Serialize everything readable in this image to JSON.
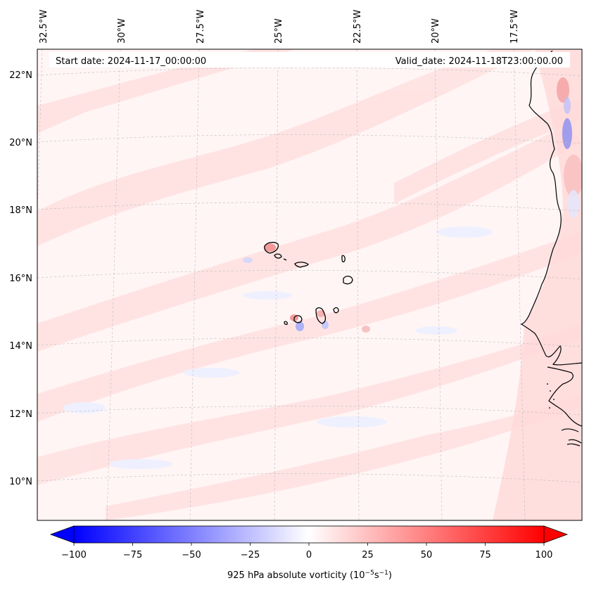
{
  "header": {
    "start_date": "Start date: 2024-11-17_00:00:00",
    "valid_date": "Valid_date: 2024-11-18T23:00:00.00"
  },
  "lon_labels": [
    "32.5°W",
    "30°W",
    "27.5°W",
    "25°W",
    "22.5°W",
    "20°W",
    "17.5°W"
  ],
  "lat_labels": [
    "22°N",
    "20°N",
    "18°N",
    "16°N",
    "14°N",
    "12°N",
    "10°N"
  ],
  "colorbar": {
    "ticks": [
      "−100",
      "−75",
      "−50",
      "−25",
      "0",
      "25",
      "50",
      "75",
      "100"
    ],
    "label": "925 hPa absolute vorticity (10",
    "label_exp1": "−5",
    "label_mid": "s",
    "label_exp2": "−1",
    "label_end": ")",
    "colormap": "bwr",
    "range": [
      -100,
      100
    ],
    "extend": "both",
    "min_color": "#0000ff",
    "mid_color": "#ffffff",
    "max_color": "#ff0000"
  },
  "map": {
    "projection": "lambert-conformal",
    "gridlines": "dashed-gray",
    "field_background": "#fff5f5",
    "coast_color": "#000000",
    "islands": "Cabo Verde"
  }
}
